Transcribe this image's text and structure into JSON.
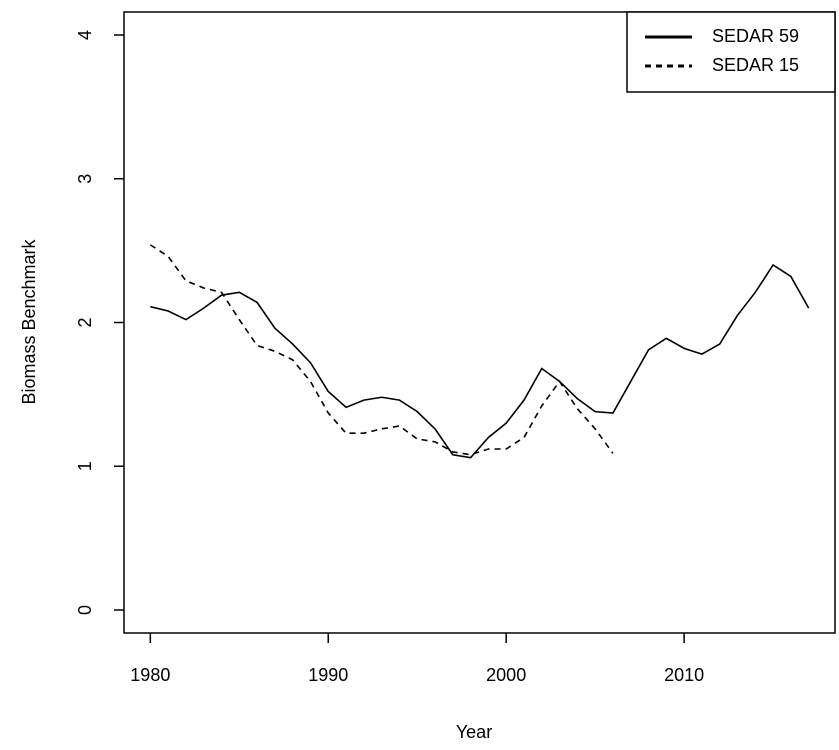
{
  "chart_data": {
    "type": "line",
    "x_label": "Year",
    "y_label": "Biomass Benchmark",
    "x": [
      1980,
      1981,
      1982,
      1983,
      1984,
      1985,
      1986,
      1987,
      1988,
      1989,
      1990,
      1991,
      1992,
      1993,
      1994,
      1995,
      1996,
      1997,
      1998,
      1999,
      2000,
      2001,
      2002,
      2003,
      2004,
      2005,
      2006,
      2007,
      2008,
      2009,
      2010,
      2011,
      2012,
      2013,
      2014,
      2015,
      2016,
      2017
    ],
    "series": [
      {
        "name": "SEDAR 59",
        "color": "#000000",
        "dash": "solid",
        "values": [
          2.11,
          2.08,
          2.02,
          2.1,
          2.19,
          2.21,
          2.14,
          1.96,
          1.85,
          1.72,
          1.52,
          1.41,
          1.46,
          1.48,
          1.46,
          1.38,
          1.26,
          1.08,
          1.06,
          1.2,
          1.3,
          1.46,
          1.68,
          1.59,
          1.47,
          1.38,
          1.37,
          1.59,
          1.81,
          1.89,
          1.82,
          1.78,
          1.85,
          2.05,
          2.21,
          2.4,
          2.32,
          2.1
        ]
      },
      {
        "name": "SEDAR 15",
        "color": "#000000",
        "dash": "dashed",
        "values": [
          2.54,
          2.46,
          2.29,
          2.24,
          2.21,
          2.02,
          1.84,
          1.8,
          1.74,
          1.59,
          1.37,
          1.23,
          1.23,
          1.26,
          1.28,
          1.19,
          1.17,
          1.1,
          1.08,
          1.12,
          1.12,
          1.2,
          1.42,
          1.59,
          1.4,
          1.26,
          1.09,
          null,
          null,
          null,
          null,
          null,
          null,
          null,
          null,
          null,
          null,
          null
        ]
      }
    ],
    "xlim": [
      1978.52,
      2018.48
    ],
    "xticks": [
      1980,
      1990,
      2000,
      2010
    ],
    "ylim": [
      -0.16,
      4.16
    ],
    "yticks": [
      0,
      1,
      2,
      3,
      4
    ],
    "legend": "top-right"
  }
}
